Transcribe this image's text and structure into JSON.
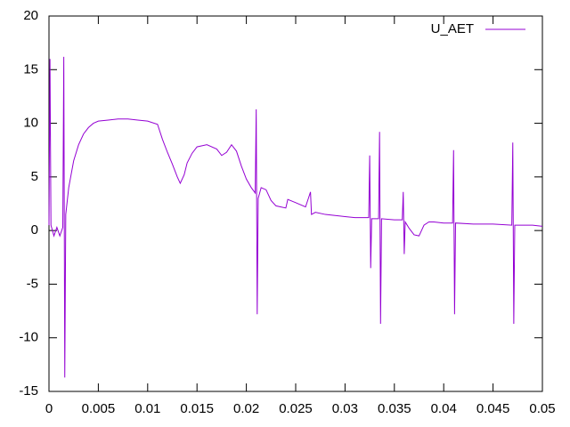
{
  "chart_data": {
    "type": "line",
    "x": [
      0,
      0.0001,
      0.0002,
      0.0005,
      0.0008,
      0.0011,
      0.0014,
      0.0015,
      0.0016,
      0.0017,
      0.002,
      0.0025,
      0.003,
      0.0035,
      0.004,
      0.0045,
      0.005,
      0.006,
      0.007,
      0.008,
      0.009,
      0.01,
      0.011,
      0.0115,
      0.012,
      0.0125,
      0.013,
      0.0133,
      0.0137,
      0.014,
      0.0145,
      0.015,
      0.016,
      0.017,
      0.0175,
      0.018,
      0.0185,
      0.019,
      0.0195,
      0.02,
      0.0205,
      0.0209,
      0.021,
      0.0211,
      0.0212,
      0.0215,
      0.022,
      0.0225,
      0.023,
      0.0235,
      0.024,
      0.0242,
      0.025,
      0.026,
      0.0265,
      0.0266,
      0.027,
      0.028,
      0.029,
      0.03,
      0.031,
      0.032,
      0.0324,
      0.0325,
      0.0326,
      0.0327,
      0.0334,
      0.0335,
      0.0336,
      0.0337,
      0.035,
      0.0358,
      0.0359,
      0.036,
      0.0361,
      0.0365,
      0.037,
      0.0375,
      0.038,
      0.0385,
      0.039,
      0.04,
      0.0409,
      0.041,
      0.0411,
      0.0412,
      0.043,
      0.045,
      0.0469,
      0.047,
      0.0471,
      0.0472,
      0.048,
      0.049,
      0.05
    ],
    "series": [
      {
        "name": "U_AET",
        "color": "#9400d3",
        "values": [
          0.5,
          16,
          0.5,
          -0.5,
          0.3,
          -0.5,
          0.3,
          16.2,
          -13.7,
          1.5,
          4,
          6.5,
          8,
          9,
          9.6,
          10,
          10.2,
          10.3,
          10.4,
          10.4,
          10.3,
          10.2,
          9.9,
          8.5,
          7.3,
          6.2,
          5,
          4.4,
          5.2,
          6.3,
          7.2,
          7.8,
          8,
          7.6,
          7,
          7.3,
          8,
          7.4,
          6,
          4.8,
          4,
          3.5,
          11.3,
          -7.8,
          3,
          4,
          3.8,
          2.8,
          2.3,
          2.2,
          2.1,
          2.9,
          2.6,
          2.2,
          3.6,
          1.5,
          1.7,
          1.5,
          1.4,
          1.3,
          1.2,
          1.2,
          1.2,
          7,
          -3.5,
          1.1,
          1.1,
          9.2,
          -8.7,
          1.1,
          1.0,
          1.0,
          3.6,
          -2.2,
          0.8,
          0.2,
          -0.4,
          -0.5,
          0.5,
          0.8,
          0.8,
          0.7,
          0.7,
          7.5,
          -7.8,
          0.7,
          0.6,
          0.6,
          0.5,
          8.2,
          -8.7,
          0.5,
          0.5,
          0.5,
          0.4
        ]
      }
    ],
    "xlim": [
      0,
      0.05
    ],
    "xticks": [
      0,
      0.005,
      0.01,
      0.015,
      0.02,
      0.025,
      0.03,
      0.035,
      0.04,
      0.045,
      0.05
    ],
    "ylim": [
      -15,
      20
    ],
    "yticks": [
      -15,
      -10,
      -5,
      0,
      5,
      10,
      15,
      20
    ],
    "legend": "top-right"
  }
}
